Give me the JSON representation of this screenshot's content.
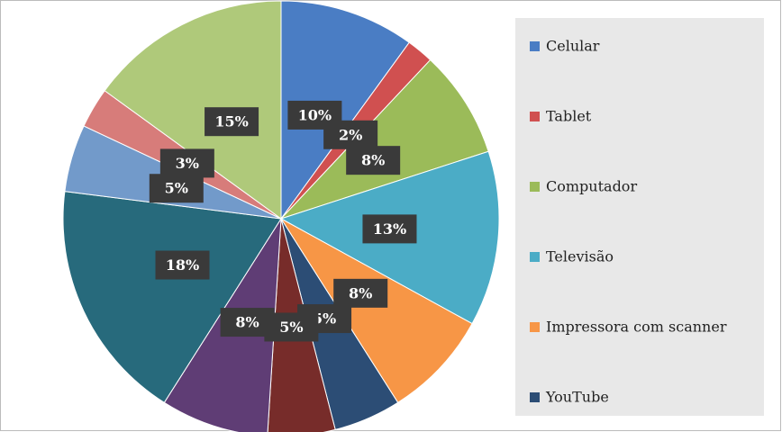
{
  "chart_data": {
    "type": "pie",
    "categories": [
      "Celular",
      "Tablet",
      "Computador",
      "Televisão",
      "Impressora com scanner",
      "YouTube",
      null,
      null,
      null,
      null,
      null,
      null
    ],
    "values": [
      10,
      2,
      8,
      13,
      8,
      5,
      5,
      8,
      18,
      5,
      3,
      15
    ],
    "value_labels": [
      "10%",
      "2%",
      "8%",
      "13%",
      "8%",
      "5%",
      "5%",
      "8%",
      "18%",
      "5%",
      "3%",
      "15%"
    ],
    "colors": [
      "#4a7dc4",
      "#d05050",
      "#9bbb59",
      "#4bacc6",
      "#f79646",
      "#2c4d75",
      "#772c2a",
      "#5f3d75",
      "#276a7c",
      "#729aca",
      "#d77c7a",
      "#afc97a"
    ]
  }
}
